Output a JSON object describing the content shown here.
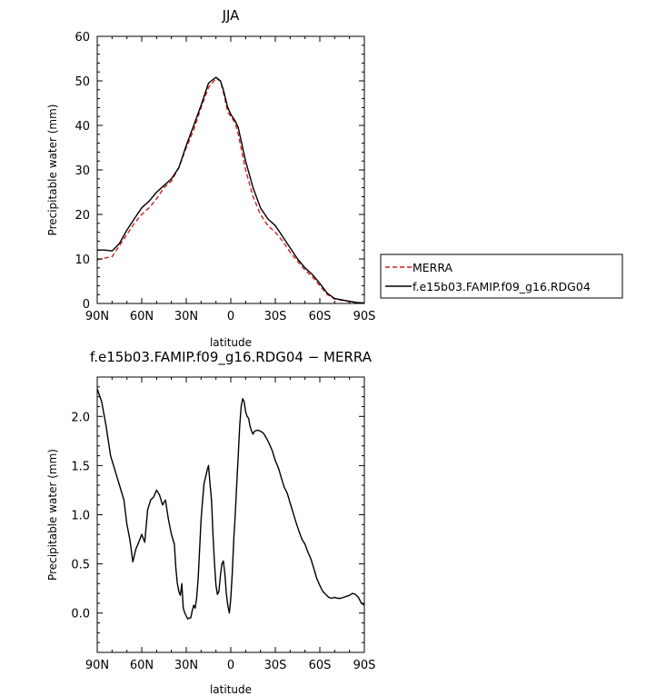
{
  "chart_data": [
    {
      "type": "line",
      "title": "JJA",
      "xlabel": "latitude",
      "ylabel": "Precipitable water (mm)",
      "xlim": [
        90,
        -90
      ],
      "ylim": [
        0,
        60
      ],
      "xticks": [
        90,
        60,
        30,
        0,
        -30,
        -60,
        -90
      ],
      "xtick_labels": [
        "90N",
        "60N",
        "30N",
        "0",
        "30S",
        "60S",
        "90S"
      ],
      "yticks": [
        0,
        10,
        20,
        30,
        40,
        50,
        60
      ],
      "ytick_labels": [
        "0",
        "10",
        "20",
        "30",
        "40",
        "50",
        "60"
      ],
      "legend": "outside-right",
      "series": [
        {
          "name": "MERRA",
          "color": "#d21e1e",
          "style": "dashed",
          "x": [
            90,
            85,
            80,
            75,
            70,
            65,
            60,
            55,
            50,
            45,
            40,
            35,
            30,
            25,
            20,
            15,
            10,
            7,
            5,
            2,
            0,
            -3,
            -5,
            -10,
            -15,
            -20,
            -25,
            -30,
            -35,
            -40,
            -45,
            -50,
            -55,
            -60,
            -65,
            -70,
            -75,
            -80,
            -85,
            -90
          ],
          "y": [
            9.8,
            10.2,
            10.5,
            13,
            15.5,
            18,
            20,
            21.5,
            23.5,
            26,
            27.5,
            30.5,
            35,
            39,
            44,
            48.5,
            50.5,
            50,
            47.5,
            43,
            42,
            40.5,
            38,
            30,
            24,
            20,
            17.5,
            16,
            14,
            11.5,
            9.5,
            7.5,
            6,
            4,
            2,
            1,
            0.7,
            0.4,
            0.2,
            0.1
          ]
        },
        {
          "name": "f.e15b03.FAMIP.f09_g16.RDG04",
          "color": "#000000",
          "style": "solid",
          "x": [
            90,
            85,
            80,
            75,
            70,
            65,
            60,
            55,
            50,
            45,
            40,
            35,
            30,
            25,
            20,
            15,
            10,
            7,
            5,
            2,
            0,
            -3,
            -5,
            -10,
            -15,
            -20,
            -25,
            -30,
            -35,
            -40,
            -45,
            -50,
            -55,
            -60,
            -65,
            -70,
            -75,
            -80,
            -85,
            -90
          ],
          "y": [
            12,
            12,
            11.8,
            13.5,
            16.5,
            19,
            21.5,
            23,
            25,
            26.5,
            28,
            30.5,
            35.5,
            40,
            44.5,
            49.5,
            50.8,
            50,
            48,
            44,
            42.5,
            41,
            39.5,
            32,
            26,
            21.5,
            19,
            17.5,
            15,
            12.5,
            10,
            8,
            6.5,
            4.5,
            2.3,
            1.1,
            0.8,
            0.5,
            0.2,
            0.1
          ]
        }
      ]
    },
    {
      "type": "line",
      "title": "f.e15b03.FAMIP.f09_g16.RDG04 − MERRA",
      "xlabel": "latitude",
      "ylabel": "Precipitable water (mm)",
      "xlim": [
        90,
        -90
      ],
      "ylim": [
        -0.4,
        2.4
      ],
      "xticks": [
        90,
        60,
        30,
        0,
        -30,
        -60,
        -90
      ],
      "xtick_labels": [
        "90N",
        "60N",
        "30N",
        "0",
        "30S",
        "60S",
        "90S"
      ],
      "yticks": [
        0,
        0.5,
        1,
        1.5,
        2
      ],
      "ytick_labels": [
        "0.0",
        "0.5",
        "1.0",
        "1.5",
        "2.0"
      ],
      "series": [
        {
          "color": "#000000",
          "style": "solid",
          "x": [
            90,
            87,
            84,
            81,
            78,
            75,
            72,
            70,
            68,
            66,
            64,
            62,
            60,
            58,
            56,
            54,
            52,
            50,
            48,
            46,
            44,
            42,
            40,
            38,
            37,
            36,
            35,
            34,
            33,
            32,
            31,
            30,
            29,
            28,
            27,
            26,
            25,
            24,
            23,
            22,
            21,
            20,
            19,
            18,
            17,
            16,
            15,
            14,
            13,
            12,
            11,
            10,
            9,
            8,
            7,
            6,
            5,
            4,
            3,
            2,
            1,
            0,
            -1,
            -2,
            -3,
            -4,
            -5,
            -6,
            -7,
            -8,
            -9,
            -10,
            -11,
            -12,
            -13,
            -14,
            -15,
            -16,
            -18,
            -20,
            -22,
            -24,
            -26,
            -28,
            -30,
            -32,
            -34,
            -36,
            -38,
            -40,
            -42,
            -44,
            -46,
            -48,
            -50,
            -52,
            -54,
            -56,
            -58,
            -60,
            -62,
            -64,
            -66,
            -68,
            -70,
            -72,
            -74,
            -76,
            -78,
            -80,
            -82,
            -84,
            -86,
            -88,
            -90
          ],
          "y": [
            2.28,
            2.15,
            1.9,
            1.6,
            1.45,
            1.3,
            1.15,
            0.9,
            0.75,
            0.52,
            0.65,
            0.72,
            0.8,
            0.72,
            1.05,
            1.15,
            1.18,
            1.25,
            1.2,
            1.1,
            1.15,
            0.95,
            0.8,
            0.7,
            0.45,
            0.3,
            0.22,
            0.18,
            0.3,
            0.05,
            0.0,
            -0.03,
            -0.06,
            -0.05,
            -0.05,
            0.02,
            0.08,
            0.05,
            0.15,
            0.35,
            0.65,
            0.95,
            1.15,
            1.32,
            1.38,
            1.45,
            1.5,
            1.32,
            1.15,
            0.8,
            0.52,
            0.28,
            0.19,
            0.22,
            0.38,
            0.5,
            0.53,
            0.4,
            0.2,
            0.08,
            0.0,
            0.15,
            0.4,
            0.75,
            1.0,
            1.3,
            1.6,
            1.9,
            2.1,
            2.18,
            2.15,
            2.05,
            2.0,
            1.98,
            1.9,
            1.85,
            1.82,
            1.85,
            1.86,
            1.85,
            1.83,
            1.78,
            1.72,
            1.65,
            1.55,
            1.48,
            1.38,
            1.28,
            1.22,
            1.12,
            1.02,
            0.92,
            0.83,
            0.75,
            0.7,
            0.62,
            0.55,
            0.45,
            0.35,
            0.28,
            0.22,
            0.19,
            0.16,
            0.15,
            0.16,
            0.15,
            0.15,
            0.16,
            0.17,
            0.18,
            0.2,
            0.19,
            0.16,
            0.1,
            0.08
          ]
        }
      ]
    }
  ]
}
